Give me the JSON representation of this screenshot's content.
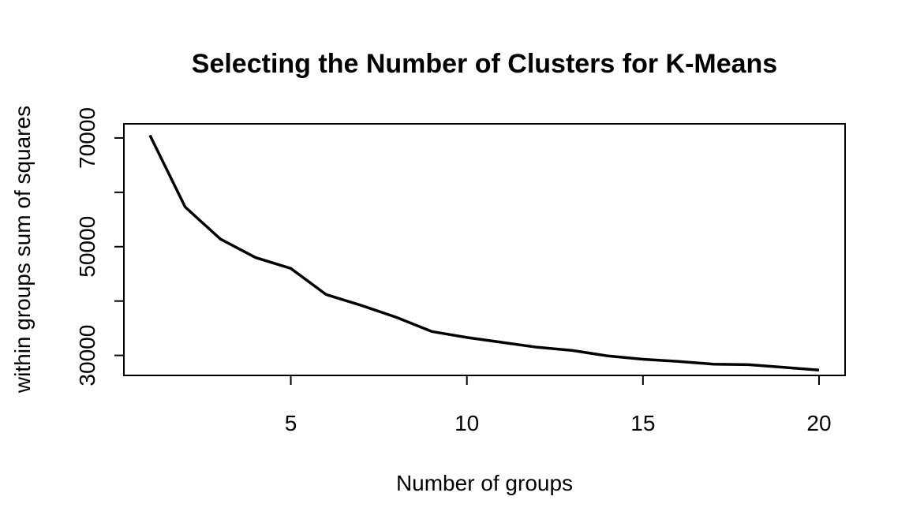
{
  "chart_data": {
    "type": "line",
    "title": "Selecting the Number of Clusters for K-Means",
    "xlabel": "Number of groups",
    "ylabel": "within groups sum of squares",
    "x": [
      1,
      2,
      3,
      4,
      5,
      6,
      7,
      8,
      9,
      10,
      11,
      12,
      13,
      14,
      15,
      16,
      17,
      18,
      19,
      20
    ],
    "series": [
      {
        "values": [
          70500,
          57300,
          51400,
          48000,
          46000,
          41200,
          39200,
          37000,
          34400,
          33300,
          32400,
          31500,
          30900,
          29900,
          29300,
          28900,
          28400,
          28300,
          27800,
          27300
        ]
      }
    ],
    "xlim": [
      0.26,
      20.74
    ],
    "ylim": [
      26320,
      72600
    ],
    "xticks": [
      5,
      10,
      15,
      20
    ],
    "xtick_labels": [
      "5",
      "10",
      "15",
      "20"
    ],
    "yticks": [
      30000,
      40000,
      50000,
      60000,
      70000
    ],
    "ytick_labels": [
      "30000",
      "",
      "50000",
      "",
      "70000"
    ],
    "grid": false,
    "line_color": "#000000"
  }
}
